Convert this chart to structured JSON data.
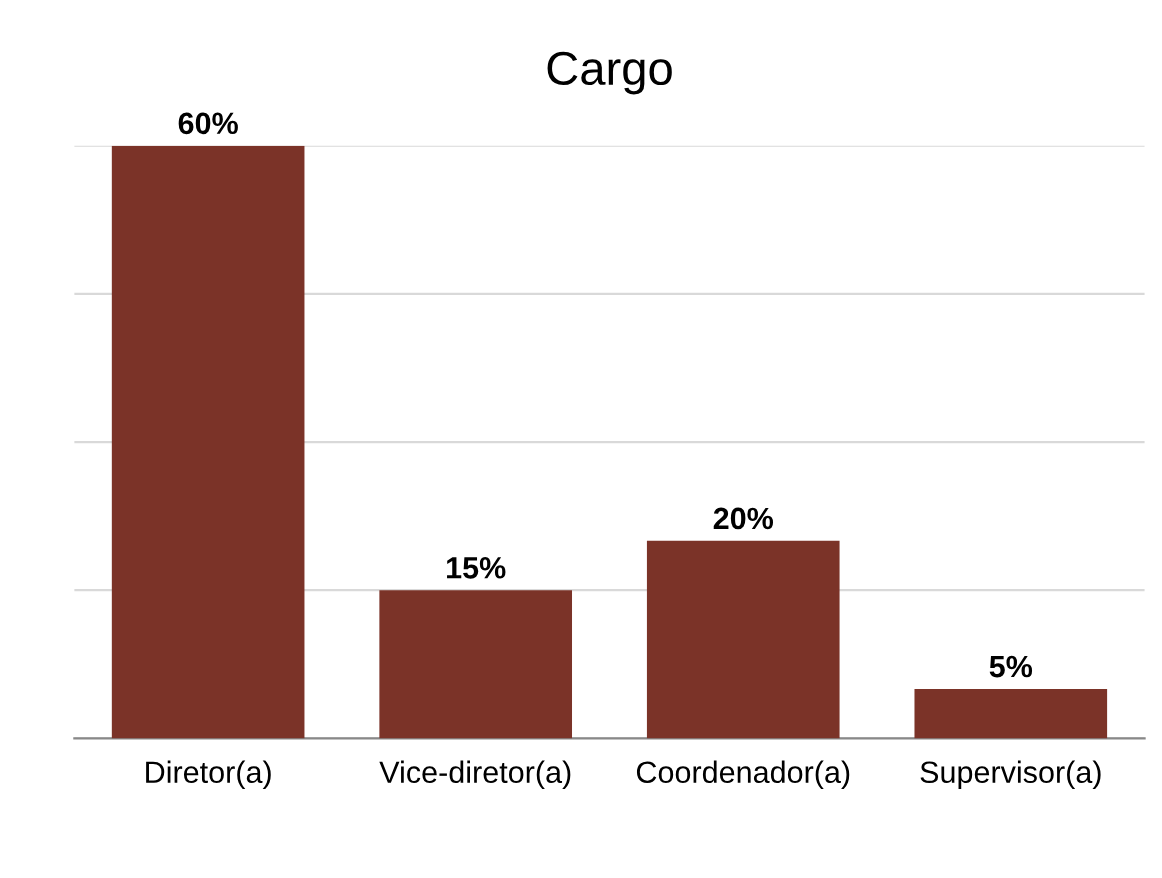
{
  "chart_data": {
    "type": "bar",
    "title": "Cargo",
    "categories": [
      "Diretor(a)",
      "Vice-diretor(a)",
      "Coordenador(a)",
      "Supervisor(a)"
    ],
    "values": [
      60,
      15,
      20,
      5
    ],
    "value_labels": [
      "60%",
      "15%",
      "20%",
      "5%"
    ],
    "color": "#7b3328",
    "ylim": [
      0,
      60
    ],
    "yticks": [
      {
        "value": 0,
        "label": null
      },
      {
        "value": 15,
        "label": null
      },
      {
        "value": 30,
        "label": null
      },
      {
        "value": 45,
        "label": null
      },
      {
        "value": 60,
        "label": null
      }
    ],
    "grid": "y",
    "tick_labels": "x"
  }
}
